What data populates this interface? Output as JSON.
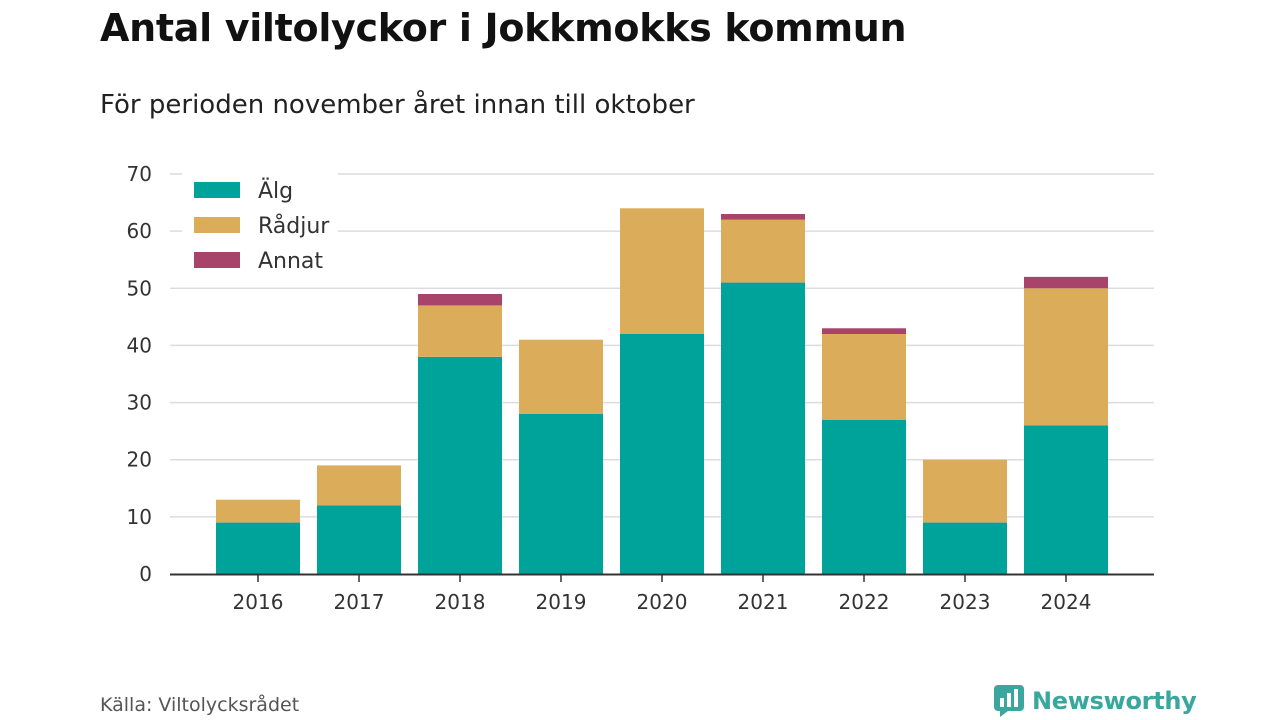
{
  "header": {
    "title": "Antal viltolyckor i Jokkmokks kommun",
    "subtitle": "För perioden november året innan till oktober"
  },
  "footer": {
    "source": "Källa: Viltolycksrådet",
    "brand": "Newsworthy"
  },
  "chart_data": {
    "type": "bar",
    "stacked": true,
    "title": "Antal viltolyckor i Jokkmokks kommun",
    "subtitle": "För perioden november året innan till oktober",
    "xlabel": "",
    "ylabel": "",
    "ylim": [
      0,
      70
    ],
    "yticks": [
      0,
      10,
      20,
      30,
      40,
      50,
      60,
      70
    ],
    "grid": true,
    "legend_position": "top-left",
    "categories": [
      "2016",
      "2017",
      "2018",
      "2019",
      "2020",
      "2021",
      "2022",
      "2023",
      "2024"
    ],
    "series": [
      {
        "name": "Älg",
        "color": "#00a39a",
        "values": [
          9,
          12,
          38,
          28,
          42,
          51,
          27,
          9,
          26
        ]
      },
      {
        "name": "Rådjur",
        "color": "#dbad5b",
        "values": [
          4,
          7,
          9,
          13,
          22,
          11,
          15,
          11,
          24
        ]
      },
      {
        "name": "Annat",
        "color": "#a8436a",
        "values": [
          0,
          0,
          2,
          0,
          0,
          1,
          1,
          0,
          2
        ]
      }
    ]
  }
}
